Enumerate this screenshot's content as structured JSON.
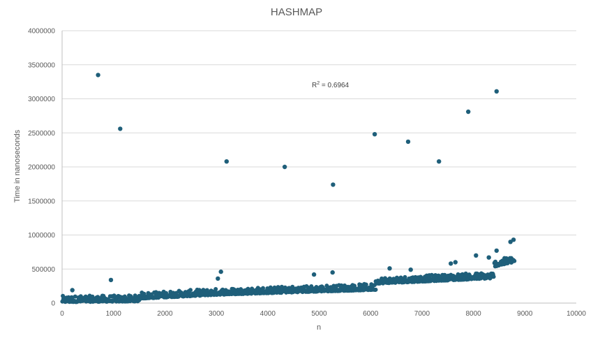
{
  "chart_data": {
    "type": "scatter",
    "title": "HASHMAP",
    "xlabel": "n",
    "ylabel": "Time in nanoseconds",
    "xlim": [
      0,
      10000
    ],
    "ylim": [
      0,
      4000000
    ],
    "x_ticks": [
      0,
      1000,
      2000,
      3000,
      4000,
      5000,
      6000,
      7000,
      8000,
      9000,
      10000
    ],
    "y_ticks": [
      0,
      500000,
      1000000,
      1500000,
      2000000,
      2500000,
      3000000,
      3500000,
      4000000
    ],
    "x_tick_labels": [
      "0",
      "1000",
      "2000",
      "3000",
      "4000",
      "5000",
      "6000",
      "7000",
      "8000",
      "9000",
      "10000"
    ],
    "y_tick_labels": [
      "0",
      "500000",
      "1000000",
      "1500000",
      "2000000",
      "2500000",
      "3000000",
      "3500000",
      "4000000"
    ],
    "grid": "horizontal",
    "marker_color": "#1f5f7a",
    "annotation": {
      "r_label": "R",
      "r_sup": "2",
      "r_rest": " = 0.6964"
    },
    "baseline_bands": [
      {
        "x_start": 0,
        "x_end": 1500,
        "y_start": 30000,
        "y_end": 40000
      },
      {
        "x_start": 1500,
        "x_end": 3100,
        "y_start": 80000,
        "y_end": 140000
      },
      {
        "x_start": 3100,
        "x_end": 6100,
        "y_start": 140000,
        "y_end": 210000
      },
      {
        "x_start": 6100,
        "x_end": 8400,
        "y_start": 300000,
        "y_end": 380000
      },
      {
        "x_start": 8400,
        "x_end": 8800,
        "y_start": 550000,
        "y_end": 620000
      }
    ],
    "outliers": [
      {
        "x": 700,
        "y": 3350000
      },
      {
        "x": 1130,
        "y": 2560000
      },
      {
        "x": 3200,
        "y": 2080000
      },
      {
        "x": 4330,
        "y": 2000000
      },
      {
        "x": 5270,
        "y": 1740000
      },
      {
        "x": 6080,
        "y": 2480000
      },
      {
        "x": 6730,
        "y": 2370000
      },
      {
        "x": 7330,
        "y": 2080000
      },
      {
        "x": 7900,
        "y": 2810000
      },
      {
        "x": 8450,
        "y": 3110000
      },
      {
        "x": 950,
        "y": 340000
      },
      {
        "x": 200,
        "y": 190000
      },
      {
        "x": 3090,
        "y": 460000
      },
      {
        "x": 6370,
        "y": 510000
      },
      {
        "x": 6780,
        "y": 490000
      },
      {
        "x": 7650,
        "y": 600000
      },
      {
        "x": 8050,
        "y": 700000
      },
      {
        "x": 8780,
        "y": 930000
      },
      {
        "x": 8720,
        "y": 900000
      },
      {
        "x": 8450,
        "y": 770000
      },
      {
        "x": 8300,
        "y": 670000
      },
      {
        "x": 7560,
        "y": 580000
      },
      {
        "x": 5260,
        "y": 450000
      },
      {
        "x": 4900,
        "y": 420000
      },
      {
        "x": 3030,
        "y": 360000
      }
    ]
  }
}
